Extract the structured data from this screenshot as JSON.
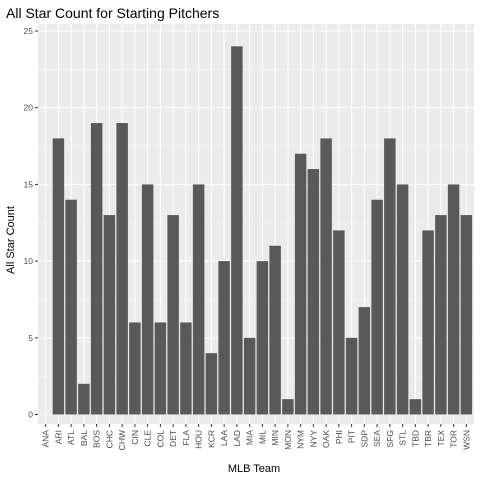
{
  "chart_data": {
    "type": "bar",
    "title": "All Star Count for Starting Pitchers",
    "xlabel": "MLB Team",
    "ylabel": "All Star Count",
    "categories": [
      "ANA",
      "ARI",
      "ATL",
      "BAL",
      "BOS",
      "CHC",
      "CHW",
      "CIN",
      "CLE",
      "COL",
      "DET",
      "FLA",
      "HOU",
      "KCR",
      "LAA",
      "LAD",
      "MIA",
      "MIL",
      "MIN",
      "MON",
      "NYM",
      "NYY",
      "OAK",
      "PHI",
      "PIT",
      "SDP",
      "SEA",
      "SFG",
      "STL",
      "TBD",
      "TBR",
      "TEX",
      "TOR",
      "WSN"
    ],
    "values": [
      0,
      18,
      14,
      2,
      19,
      13,
      19,
      6,
      15,
      6,
      13,
      6,
      15,
      4,
      10,
      24,
      5,
      10,
      11,
      1,
      17,
      16,
      18,
      12,
      5,
      7,
      14,
      18,
      15,
      1,
      12,
      13,
      15,
      13
    ],
    "ylim": [
      0,
      25
    ],
    "yticks": [
      0,
      5,
      10,
      15,
      20,
      25
    ],
    "grid": true,
    "legend": "none",
    "colors": {
      "bar": "#595959",
      "panel": "#ebebeb",
      "grid_major": "#ffffff",
      "grid_minor": "#f5f5f5"
    }
  }
}
